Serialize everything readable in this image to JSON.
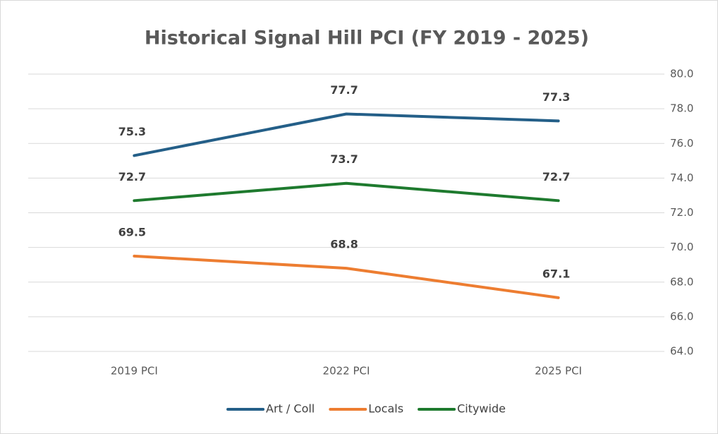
{
  "chart_data": {
    "type": "line",
    "title": "Historical Signal Hill PCI (FY 2019 - 2025)",
    "categories": [
      "2019 PCI",
      "2022 PCI",
      "2025 PCI"
    ],
    "series": [
      {
        "name": "Art / Coll",
        "color": "#245f88",
        "values": [
          75.3,
          77.7,
          77.3
        ]
      },
      {
        "name": "Locals",
        "color": "#ed7d31",
        "values": [
          69.5,
          68.8,
          67.1
        ]
      },
      {
        "name": "Citywide",
        "color": "#1e7a2e",
        "values": [
          72.7,
          73.7,
          72.7
        ]
      }
    ],
    "ylim": [
      64,
      80
    ],
    "yticks": [
      {
        "value": 64,
        "label": "64.0"
      },
      {
        "value": 66,
        "label": "66.0"
      },
      {
        "value": 68,
        "label": "68.0"
      },
      {
        "value": 70,
        "label": "70.0"
      },
      {
        "value": 72,
        "label": "72.0"
      },
      {
        "value": 74,
        "label": "74.0"
      },
      {
        "value": 76,
        "label": "76.0"
      },
      {
        "value": 78,
        "label": "78.0"
      },
      {
        "value": 80,
        "label": "80.0"
      }
    ],
    "grid": true,
    "legend": "bottom"
  }
}
